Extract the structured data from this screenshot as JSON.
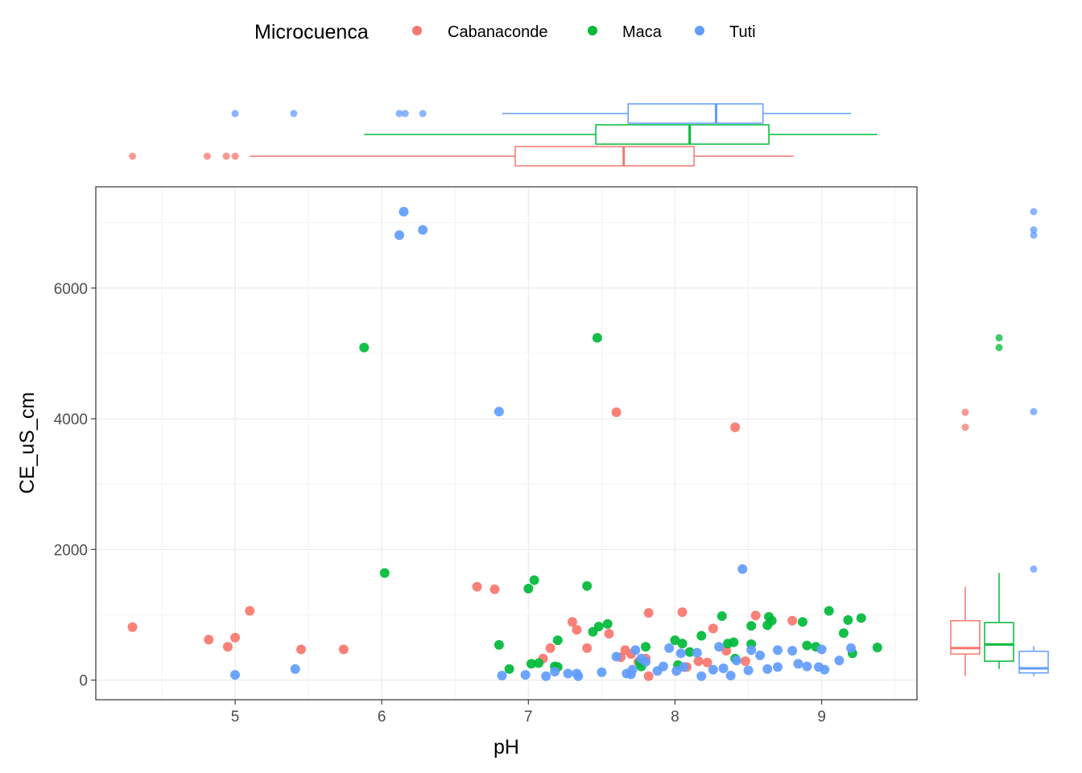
{
  "chart_data": {
    "type": "scatter",
    "title": "",
    "xlabel": "pH",
    "ylabel": "CE_uS_cm",
    "xlim": [
      4.05,
      9.65
    ],
    "ylim": [
      -300,
      7550
    ],
    "x_ticks": [
      5,
      6,
      7,
      8,
      9
    ],
    "x_tick_labels": [
      "5",
      "6",
      "7",
      "8",
      "9"
    ],
    "y_ticks": [
      0,
      2000,
      4000,
      6000
    ],
    "y_tick_labels": [
      "0",
      "2000",
      "4000",
      "6000"
    ],
    "grid": true,
    "legend": {
      "title": "Microcuenca",
      "position": "top",
      "entries": [
        "Cabanaconde",
        "Maca",
        "Tuti"
      ]
    },
    "colors": {
      "Cabanaconde": "#F8766D",
      "Maca": "#00BA38",
      "Tuti": "#619CFF"
    },
    "series": [
      {
        "name": "Cabanaconde",
        "points": [
          [
            4.3,
            810
          ],
          [
            4.82,
            620
          ],
          [
            4.95,
            510
          ],
          [
            5.0,
            650
          ],
          [
            5.1,
            1060
          ],
          [
            5.45,
            470
          ],
          [
            5.74,
            470
          ],
          [
            6.65,
            1430
          ],
          [
            6.77,
            1390
          ],
          [
            7.1,
            330
          ],
          [
            7.15,
            490
          ],
          [
            7.3,
            890
          ],
          [
            7.33,
            770
          ],
          [
            7.4,
            490
          ],
          [
            7.55,
            710
          ],
          [
            7.6,
            4100
          ],
          [
            7.63,
            350
          ],
          [
            7.66,
            460
          ],
          [
            7.7,
            400
          ],
          [
            7.75,
            280
          ],
          [
            7.8,
            330
          ],
          [
            7.82,
            1030
          ],
          [
            7.82,
            60
          ],
          [
            8.05,
            1040
          ],
          [
            8.08,
            200
          ],
          [
            8.16,
            290
          ],
          [
            8.22,
            270
          ],
          [
            8.26,
            790
          ],
          [
            8.35,
            450
          ],
          [
            8.41,
            3870
          ],
          [
            8.48,
            290
          ],
          [
            8.55,
            990
          ],
          [
            8.8,
            910
          ]
        ],
        "box_x": {
          "min": 5.1,
          "q1": 6.91,
          "median": 7.65,
          "q3": 8.13,
          "max": 8.81,
          "outliers": [
            4.3,
            4.81,
            4.94,
            5.0
          ]
        },
        "box_y": {
          "min": 60,
          "q1": 400,
          "median": 490,
          "q3": 910,
          "max": 1430,
          "outliers": [
            3870,
            4100
          ]
        }
      },
      {
        "name": "Maca",
        "points": [
          [
            5.88,
            5090
          ],
          [
            6.02,
            1640
          ],
          [
            6.8,
            540
          ],
          [
            6.87,
            170
          ],
          [
            7.0,
            1400
          ],
          [
            7.02,
            250
          ],
          [
            7.04,
            1530
          ],
          [
            7.07,
            260
          ],
          [
            7.18,
            210
          ],
          [
            7.2,
            200
          ],
          [
            7.2,
            610
          ],
          [
            7.4,
            1440
          ],
          [
            7.44,
            740
          ],
          [
            7.47,
            5240
          ],
          [
            7.48,
            820
          ],
          [
            7.54,
            860
          ],
          [
            7.76,
            270
          ],
          [
            7.77,
            210
          ],
          [
            7.8,
            510
          ],
          [
            8.0,
            610
          ],
          [
            8.02,
            230
          ],
          [
            8.05,
            560
          ],
          [
            8.1,
            430
          ],
          [
            8.18,
            680
          ],
          [
            8.32,
            980
          ],
          [
            8.36,
            560
          ],
          [
            8.4,
            580
          ],
          [
            8.41,
            330
          ],
          [
            8.52,
            830
          ],
          [
            8.52,
            550
          ],
          [
            8.63,
            840
          ],
          [
            8.64,
            970
          ],
          [
            8.66,
            910
          ],
          [
            8.87,
            890
          ],
          [
            8.9,
            530
          ],
          [
            8.96,
            510
          ],
          [
            9.05,
            1060
          ],
          [
            9.15,
            720
          ],
          [
            9.18,
            920
          ],
          [
            9.21,
            410
          ],
          [
            9.27,
            950
          ],
          [
            9.38,
            500
          ]
        ],
        "box_x": {
          "min": 5.88,
          "q1": 7.46,
          "median": 8.1,
          "q3": 8.64,
          "max": 9.38,
          "outliers": []
        },
        "box_y": {
          "min": 170,
          "q1": 290,
          "median": 545,
          "q3": 880,
          "max": 1640,
          "outliers": [
            5090,
            5240
          ]
        }
      },
      {
        "name": "Tuti",
        "points": [
          [
            5.0,
            80
          ],
          [
            5.41,
            170
          ],
          [
            6.12,
            6810
          ],
          [
            6.15,
            7170
          ],
          [
            6.28,
            6890
          ],
          [
            6.8,
            4110
          ],
          [
            6.82,
            70
          ],
          [
            6.98,
            80
          ],
          [
            7.12,
            60
          ],
          [
            7.18,
            130
          ],
          [
            7.27,
            100
          ],
          [
            7.33,
            100
          ],
          [
            7.34,
            60
          ],
          [
            7.5,
            120
          ],
          [
            7.6,
            360
          ],
          [
            7.67,
            100
          ],
          [
            7.7,
            90
          ],
          [
            7.71,
            160
          ],
          [
            7.73,
            460
          ],
          [
            7.77,
            330
          ],
          [
            7.8,
            280
          ],
          [
            7.88,
            140
          ],
          [
            7.92,
            210
          ],
          [
            7.96,
            490
          ],
          [
            8.01,
            140
          ],
          [
            8.04,
            410
          ],
          [
            8.06,
            200
          ],
          [
            8.15,
            420
          ],
          [
            8.18,
            60
          ],
          [
            8.26,
            160
          ],
          [
            8.3,
            510
          ],
          [
            8.33,
            180
          ],
          [
            8.38,
            70
          ],
          [
            8.42,
            300
          ],
          [
            8.46,
            1700
          ],
          [
            8.5,
            150
          ],
          [
            8.52,
            460
          ],
          [
            8.58,
            380
          ],
          [
            8.63,
            170
          ],
          [
            8.7,
            200
          ],
          [
            8.7,
            460
          ],
          [
            8.8,
            450
          ],
          [
            8.84,
            250
          ],
          [
            8.9,
            210
          ],
          [
            8.98,
            200
          ],
          [
            9.0,
            470
          ],
          [
            9.02,
            160
          ],
          [
            9.12,
            300
          ],
          [
            9.2,
            490
          ]
        ],
        "box_x": {
          "min": 6.82,
          "q1": 7.68,
          "median": 8.28,
          "q3": 8.6,
          "max": 9.2,
          "outliers": [
            5.0,
            5.4,
            6.12,
            6.16,
            6.28
          ]
        },
        "box_y": {
          "min": 60,
          "q1": 110,
          "median": 180,
          "q3": 440,
          "max": 520,
          "outliers": [
            1700,
            4110,
            6810,
            6890,
            7170
          ]
        }
      }
    ]
  }
}
